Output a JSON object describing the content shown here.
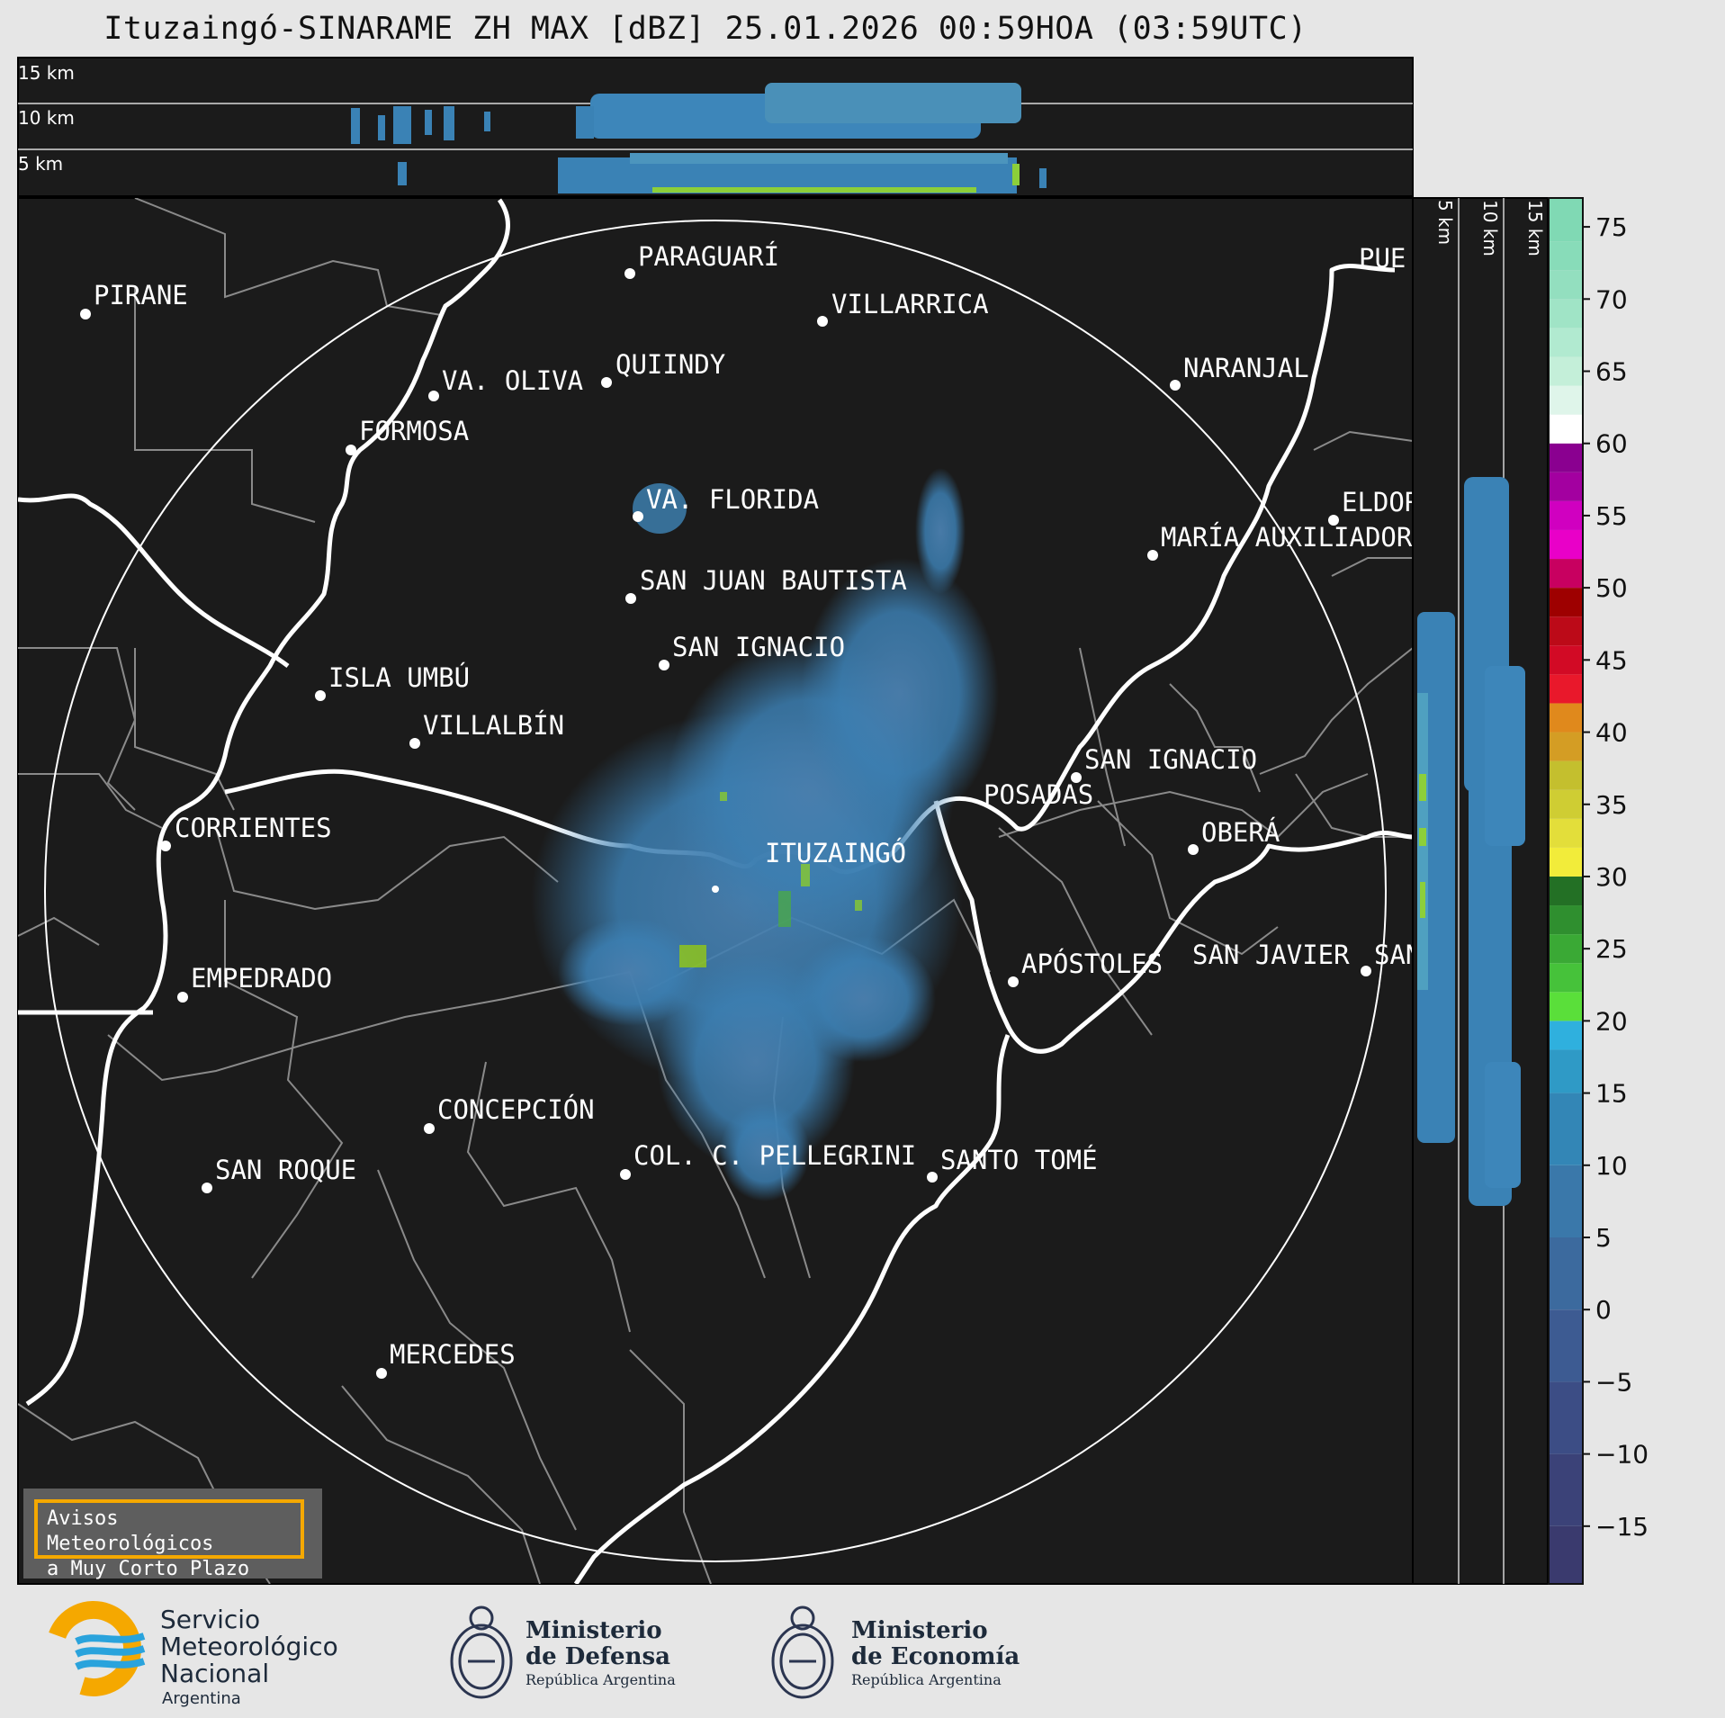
{
  "title": "Ituzaingó-SINARAME ZH MAX [dBZ] 25.01.2026 00:59HOA (03:59UTC)",
  "colorbar": {
    "label_unit": "dBZ",
    "ticks": [
      "75",
      "70",
      "65",
      "60",
      "55",
      "50",
      "45",
      "40",
      "35",
      "30",
      "25",
      "20",
      "15",
      "10",
      "5",
      "0",
      "−5",
      "−10",
      "−15"
    ],
    "range": [
      -19,
      77
    ]
  },
  "height_axis": {
    "top_panel_labels": [
      "15 km",
      "10 km",
      "5 km"
    ],
    "side_panel_labels": [
      "5 km",
      "10 km",
      "15 km"
    ]
  },
  "cities": [
    {
      "name": "PIRANE"
    },
    {
      "name": "PARAGUARÍ"
    },
    {
      "name": "VILLARRICA"
    },
    {
      "name": "VA. OLIVA"
    },
    {
      "name": "QUIINDY"
    },
    {
      "name": "NARANJAL"
    },
    {
      "name": "FORMOSA"
    },
    {
      "name": "VA. FLORIDA"
    },
    {
      "name": "ELDOR"
    },
    {
      "name": "MARÍA AUXILIADOR"
    },
    {
      "name": "SAN JUAN BAUTISTA"
    },
    {
      "name": "SAN IGNACIO"
    },
    {
      "name": "ISLA UMBÚ"
    },
    {
      "name": "VILLALBÍN"
    },
    {
      "name": "SAN IGNACIO"
    },
    {
      "name": "POSADAS"
    },
    {
      "name": "CORRIENTES"
    },
    {
      "name": "ITUZAINGÓ"
    },
    {
      "name": "OBERÁ"
    },
    {
      "name": "APÓSTOLES"
    },
    {
      "name": "SAN JAVIER"
    },
    {
      "name": "SAN"
    },
    {
      "name": "EMPEDRADO"
    },
    {
      "name": "CONCEPCIÓN"
    },
    {
      "name": "COL. C. PELLEGRINI"
    },
    {
      "name": "SANTO TOMÉ"
    },
    {
      "name": "SAN ROQUE"
    },
    {
      "name": "MERCEDES"
    },
    {
      "name": "PUE"
    }
  ],
  "alert_box": {
    "line1": "Avisos Meteorológicos",
    "line2": "a Muy Corto Plazo"
  },
  "logos": {
    "smn": {
      "line1": "Servicio",
      "line2": "Meteorológico",
      "line3": "Nacional",
      "line4": "Argentina"
    },
    "defensa": {
      "line1": "Ministerio",
      "line2": "de Defensa",
      "line3": "República Argentina"
    },
    "economia": {
      "line1": "Ministerio",
      "line2": "de Economía",
      "line3": "República Argentina"
    }
  },
  "colors": {
    "map_bg": "#1b1b1b",
    "borders": "#8a8a8a",
    "rivers": "#ffffff",
    "echo_blue": "#3a86b8",
    "smn_orange": "#f5a800",
    "smn_blue": "#2aa3dc"
  }
}
